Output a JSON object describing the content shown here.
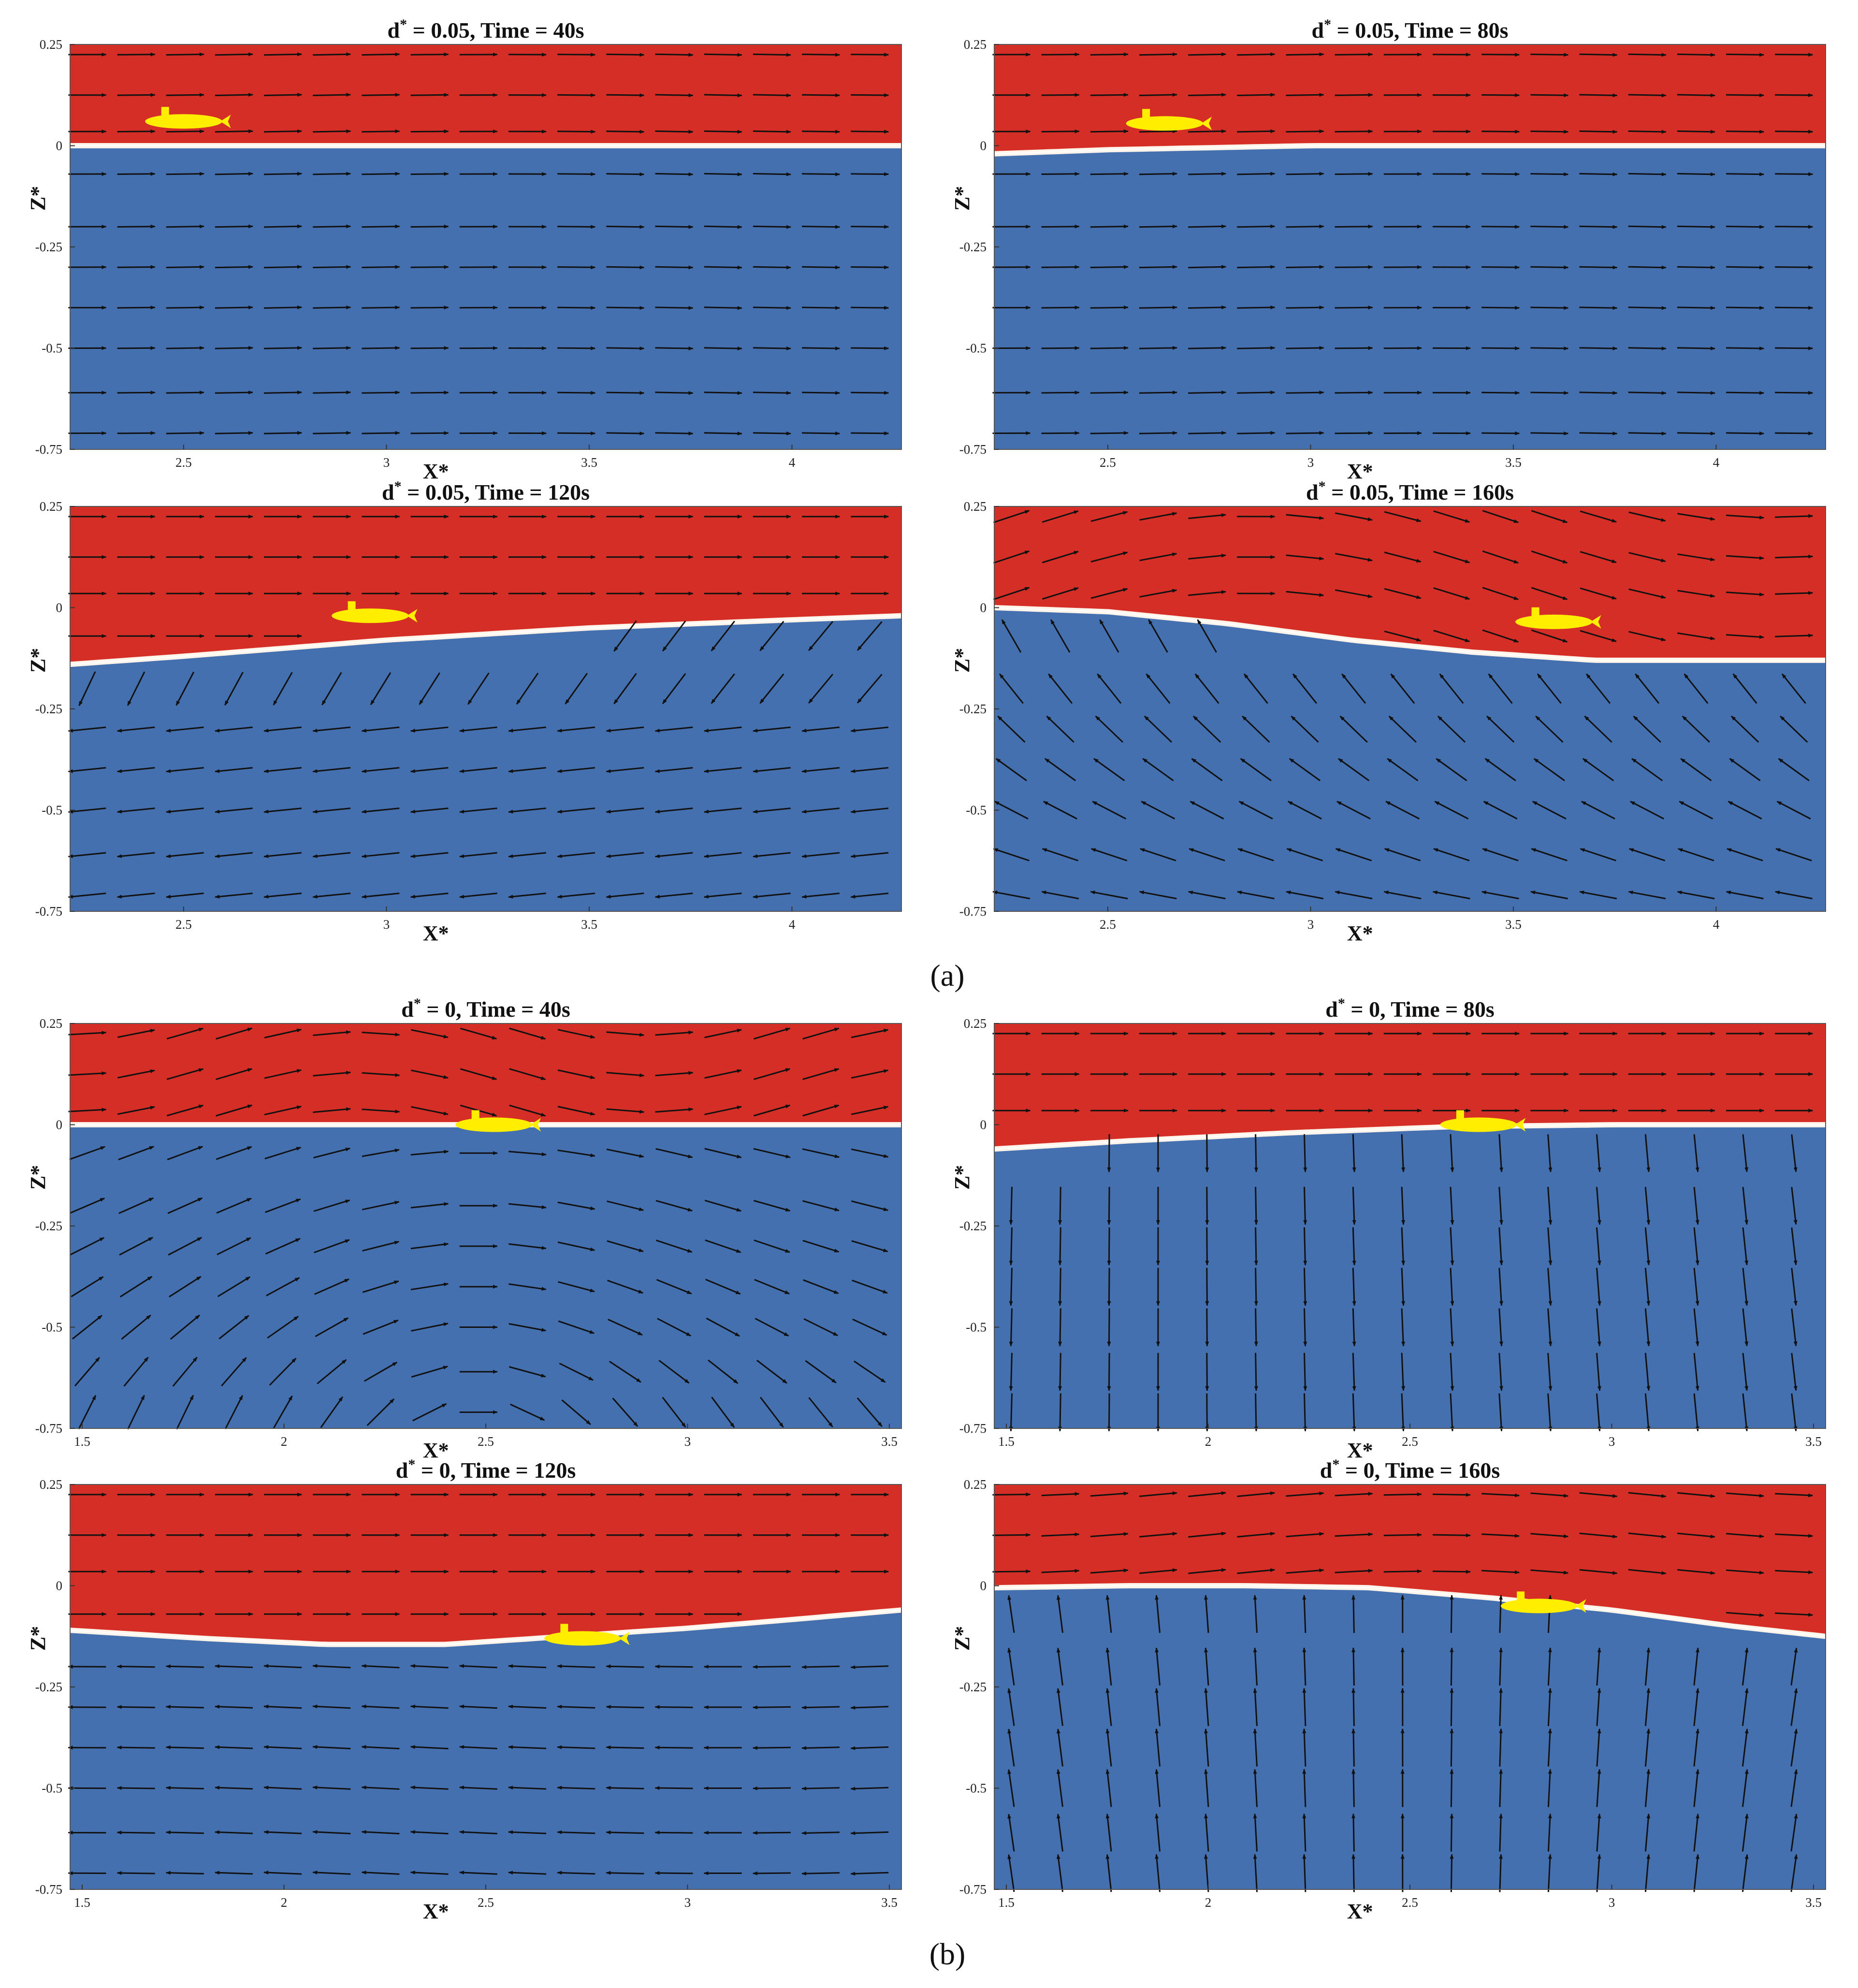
{
  "figure": {
    "sublabels": [
      "(a)",
      "(b)"
    ]
  },
  "colors": {
    "air": "#d52e26",
    "water": "#4470b0",
    "interface": "#fff4ea",
    "submarine": "#ffee00",
    "vector": "#111111"
  },
  "chart_data": [
    {
      "type": "contour-vector",
      "group": "a",
      "title": "d* = 0.05, Time = 40s",
      "title_main": "d",
      "title_sup": "*",
      "title_rest": " = 0.05, Time = 40s",
      "xlabel": "X*",
      "ylabel": "Z*",
      "xlim": [
        2.22,
        4.27
      ],
      "ylim": [
        -0.75,
        0.25
      ],
      "xticks": [
        "2.5",
        "3",
        "3.5",
        "4"
      ],
      "xtick_values": [
        2.5,
        3,
        3.5,
        4
      ],
      "yticks": [
        "0.25",
        "0",
        "-0.25",
        "-0.5",
        "-0.75"
      ],
      "ytick_values": [
        0.25,
        0,
        -0.25,
        -0.5,
        -0.75
      ],
      "free_surface": {
        "x": [
          2.22,
          3.0,
          3.5,
          4.27
        ],
        "z": [
          0.0,
          0.0,
          0.0,
          0.0
        ]
      },
      "submarine": {
        "x": 2.5,
        "z": 0.06,
        "length": 0.19
      },
      "vector_direction": "rightward"
    },
    {
      "type": "contour-vector",
      "group": "a",
      "title": "d* = 0.05, Time = 80s",
      "title_main": "d",
      "title_sup": "*",
      "title_rest": " = 0.05, Time = 80s",
      "xlabel": "X*",
      "ylabel": "Z*",
      "xlim": [
        2.22,
        4.27
      ],
      "ylim": [
        -0.75,
        0.25
      ],
      "xticks": [
        "2.5",
        "3",
        "3.5",
        "4"
      ],
      "xtick_values": [
        2.5,
        3,
        3.5,
        4
      ],
      "yticks": [
        "0.25",
        "0",
        "-0.25",
        "-0.5",
        "-0.75"
      ],
      "ytick_values": [
        0.25,
        0,
        -0.25,
        -0.5,
        -0.75
      ],
      "free_surface": {
        "x": [
          2.22,
          2.5,
          3.0,
          4.27
        ],
        "z": [
          -0.02,
          -0.01,
          0.0,
          0.0
        ]
      },
      "submarine": {
        "x": 2.64,
        "z": 0.055,
        "length": 0.19
      },
      "vector_direction": "rightward"
    },
    {
      "type": "contour-vector",
      "group": "a",
      "title": "d* = 0.05, Time = 120s",
      "title_main": "d",
      "title_sup": "*",
      "title_rest": " = 0.05, Time = 120s",
      "xlabel": "X*",
      "ylabel": "Z*",
      "xlim": [
        2.22,
        4.27
      ],
      "ylim": [
        -0.75,
        0.25
      ],
      "xticks": [
        "2.5",
        "3",
        "3.5",
        "4"
      ],
      "xtick_values": [
        2.5,
        3,
        3.5,
        4
      ],
      "yticks": [
        "0.25",
        "0",
        "-0.25",
        "-0.5",
        "-0.75"
      ],
      "ytick_values": [
        0.25,
        0,
        -0.25,
        -0.5,
        -0.75
      ],
      "free_surface": {
        "x": [
          2.22,
          2.5,
          3.0,
          3.5,
          4.0,
          4.27
        ],
        "z": [
          -0.14,
          -0.12,
          -0.08,
          -0.05,
          -0.03,
          -0.02
        ]
      },
      "submarine": {
        "x": 2.96,
        "z": -0.02,
        "length": 0.19
      },
      "vector_direction": "mixed"
    },
    {
      "type": "contour-vector",
      "group": "a",
      "title": "d* = 0.05, Time = 160s",
      "title_main": "d",
      "title_sup": "*",
      "title_rest": " = 0.05, Time = 160s",
      "xlabel": "X*",
      "ylabel": "Z*",
      "xlim": [
        2.22,
        4.27
      ],
      "ylim": [
        -0.75,
        0.25
      ],
      "xticks": [
        "2.5",
        "3",
        "3.5",
        "4"
      ],
      "xtick_values": [
        2.5,
        3,
        3.5,
        4
      ],
      "yticks": [
        "0.25",
        "0",
        "-0.25",
        "-0.5",
        "-0.75"
      ],
      "ytick_values": [
        0.25,
        0,
        -0.25,
        -0.5,
        -0.75
      ],
      "free_surface": {
        "x": [
          2.22,
          2.5,
          2.8,
          3.1,
          3.4,
          3.7,
          4.0,
          4.27
        ],
        "z": [
          0.0,
          -0.01,
          -0.04,
          -0.08,
          -0.11,
          -0.13,
          -0.13,
          -0.13
        ]
      },
      "submarine": {
        "x": 3.6,
        "z": -0.035,
        "length": 0.19
      },
      "vector_direction": "upward-left"
    },
    {
      "type": "contour-vector",
      "group": "b",
      "title": "d* = 0, Time = 40s",
      "title_main": "d",
      "title_sup": "*",
      "title_rest": " = 0, Time = 40s",
      "xlabel": "X*",
      "ylabel": "Z*",
      "xlim": [
        1.47,
        3.53
      ],
      "ylim": [
        -0.75,
        0.25
      ],
      "xticks": [
        "1.5",
        "2",
        "2.5",
        "3",
        "3.5"
      ],
      "xtick_values": [
        1.5,
        2,
        2.5,
        3,
        3.5
      ],
      "yticks": [
        "0.25",
        "0",
        "-0.25",
        "-0.5",
        "-0.75"
      ],
      "ytick_values": [
        0.25,
        0,
        -0.25,
        -0.5,
        -0.75
      ],
      "free_surface": {
        "x": [
          1.47,
          2.5,
          3.53
        ],
        "z": [
          0.0,
          0.0,
          0.0
        ]
      },
      "submarine": {
        "x": 2.52,
        "z": 0.0,
        "length": 0.19
      },
      "vector_direction": "rightward-vortex"
    },
    {
      "type": "contour-vector",
      "group": "b",
      "title": "d* = 0, Time = 80s",
      "title_main": "d",
      "title_sup": "*",
      "title_rest": " = 0, Time = 80s",
      "xlabel": "X*",
      "ylabel": "Z*",
      "xlim": [
        1.47,
        3.53
      ],
      "ylim": [
        -0.75,
        0.25
      ],
      "xticks": [
        "1.5",
        "2",
        "2.5",
        "3",
        "3.5"
      ],
      "xtick_values": [
        1.5,
        2,
        2.5,
        3,
        3.5
      ],
      "yticks": [
        "0.25",
        "0",
        "-0.25",
        "-0.5",
        "-0.75"
      ],
      "ytick_values": [
        0.25,
        0,
        -0.25,
        -0.5,
        -0.75
      ],
      "free_surface": {
        "x": [
          1.47,
          1.8,
          2.2,
          2.6,
          3.0,
          3.53
        ],
        "z": [
          -0.06,
          -0.04,
          -0.02,
          -0.005,
          0.0,
          0.0
        ]
      },
      "submarine": {
        "x": 2.67,
        "z": 0.0,
        "length": 0.19
      },
      "vector_direction": "downward"
    },
    {
      "type": "contour-vector",
      "group": "b",
      "title": "d* = 0, Time = 120s",
      "title_main": "d",
      "title_sup": "*",
      "title_rest": " = 0, Time = 120s",
      "xlabel": "X*",
      "ylabel": "Z*",
      "xlim": [
        1.47,
        3.53
      ],
      "ylim": [
        -0.75,
        0.25
      ],
      "xticks": [
        "1.5",
        "2",
        "2.5",
        "3",
        "3.5"
      ],
      "xtick_values": [
        1.5,
        2,
        2.5,
        3,
        3.5
      ],
      "yticks": [
        "0.25",
        "0",
        "-0.25",
        "-0.5",
        "-0.75"
      ],
      "ytick_values": [
        0.25,
        0,
        -0.25,
        -0.5,
        -0.75
      ],
      "free_surface": {
        "x": [
          1.47,
          1.8,
          2.1,
          2.4,
          2.7,
          3.0,
          3.3,
          3.53
        ],
        "z": [
          -0.11,
          -0.13,
          -0.145,
          -0.145,
          -0.125,
          -0.105,
          -0.08,
          -0.06
        ]
      },
      "submarine": {
        "x": 2.74,
        "z": -0.13,
        "length": 0.19
      },
      "vector_direction": "leftward"
    },
    {
      "type": "contour-vector",
      "group": "b",
      "title": "d* = 0, Time = 160s",
      "title_main": "d",
      "title_sup": "*",
      "title_rest": " = 0, Time = 160s",
      "xlabel": "X*",
      "ylabel": "Z*",
      "xlim": [
        1.47,
        3.53
      ],
      "ylim": [
        -0.75,
        0.25
      ],
      "xticks": [
        "1.5",
        "2",
        "2.5",
        "3",
        "3.5"
      ],
      "xtick_values": [
        1.5,
        2,
        2.5,
        3,
        3.5
      ],
      "yticks": [
        "0.25",
        "0",
        "-0.25",
        "-0.5",
        "-0.75"
      ],
      "ytick_values": [
        0.25,
        0,
        -0.25,
        -0.5,
        -0.75
      ],
      "free_surface": {
        "x": [
          1.47,
          1.8,
          2.1,
          2.4,
          2.7,
          3.0,
          3.3,
          3.53
        ],
        "z": [
          -0.005,
          0.0,
          0.0,
          -0.005,
          -0.03,
          -0.06,
          -0.1,
          -0.125
        ]
      },
      "submarine": {
        "x": 2.82,
        "z": -0.05,
        "length": 0.19
      },
      "vector_direction": "upward"
    }
  ]
}
